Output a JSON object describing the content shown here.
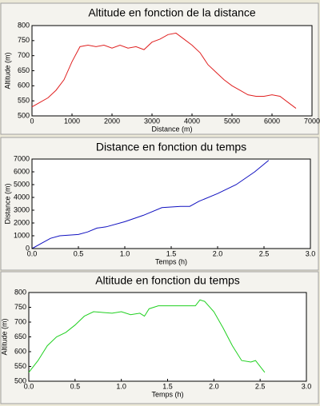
{
  "chart_data": [
    {
      "type": "line",
      "title": "Altitude en fonction de la distance",
      "x_label": "Distance (m)",
      "y_label": "Altitude (m)",
      "x": [
        0,
        200,
        400,
        600,
        800,
        1000,
        1200,
        1400,
        1600,
        1800,
        2000,
        2200,
        2400,
        2600,
        2800,
        3000,
        3200,
        3400,
        3600,
        3800,
        4000,
        4200,
        4400,
        4600,
        4800,
        5000,
        5200,
        5400,
        5600,
        5800,
        6000,
        6200,
        6400,
        6600
      ],
      "series": [
        {
          "color": "#e02020",
          "values": [
            530,
            545,
            560,
            585,
            620,
            680,
            730,
            735,
            730,
            735,
            725,
            735,
            725,
            730,
            720,
            745,
            755,
            770,
            775,
            755,
            735,
            710,
            670,
            645,
            620,
            600,
            585,
            570,
            565,
            565,
            570,
            565,
            545,
            525
          ]
        }
      ],
      "xlim": [
        0,
        7000
      ],
      "xticks": [
        0,
        1000,
        2000,
        3000,
        4000,
        5000,
        6000,
        7000
      ],
      "ylim": [
        500,
        800
      ],
      "yticks": [
        500,
        550,
        600,
        650,
        700,
        750,
        800
      ]
    },
    {
      "type": "line",
      "title": "Distance en fonction du temps",
      "x_label": "Temps (h)",
      "y_label": "Distance (m)",
      "x": [
        0,
        0.1,
        0.2,
        0.3,
        0.5,
        0.6,
        0.7,
        0.8,
        1.0,
        1.2,
        1.4,
        1.6,
        1.7,
        1.8,
        2.0,
        2.2,
        2.4,
        2.55
      ],
      "series": [
        {
          "color": "#1010c0",
          "values": [
            0,
            400,
            800,
            1000,
            1100,
            1300,
            1600,
            1700,
            2100,
            2600,
            3200,
            3300,
            3300,
            3700,
            4300,
            5000,
            6000,
            6900
          ]
        }
      ],
      "xlim": [
        0,
        3
      ],
      "xticks": [
        {
          "value": 0,
          "label": "0.0"
        },
        0.5,
        {
          "value": 1,
          "label": "1.0"
        },
        1.5,
        {
          "value": 2,
          "label": "2.0"
        },
        2.5,
        {
          "value": 3,
          "label": "3.0"
        }
      ],
      "ylim": [
        0,
        7000
      ],
      "yticks": [
        0,
        1000,
        2000,
        3000,
        4000,
        5000,
        6000,
        7000
      ]
    },
    {
      "type": "line",
      "title": "Altitude en fonction du temps",
      "x_label": "Temps (h)",
      "y_label": "Altitude (m)",
      "x": [
        0,
        0.1,
        0.2,
        0.3,
        0.4,
        0.5,
        0.6,
        0.7,
        0.9,
        1.0,
        1.1,
        1.2,
        1.25,
        1.3,
        1.4,
        1.6,
        1.8,
        1.85,
        1.9,
        2.0,
        2.1,
        2.2,
        2.3,
        2.4,
        2.45,
        2.55
      ],
      "series": [
        {
          "color": "#20d020",
          "values": [
            530,
            570,
            620,
            650,
            665,
            690,
            720,
            735,
            730,
            735,
            725,
            730,
            720,
            745,
            755,
            755,
            755,
            775,
            770,
            735,
            680,
            620,
            570,
            565,
            570,
            530
          ]
        }
      ],
      "xlim": [
        0,
        3
      ],
      "xticks": [
        {
          "value": 0,
          "label": "0.0"
        },
        0.5,
        {
          "value": 1,
          "label": "1.0"
        },
        1.5,
        {
          "value": 2,
          "label": "2.0"
        },
        2.5,
        {
          "value": 3,
          "label": "3.0"
        }
      ],
      "ylim": [
        500,
        800
      ],
      "yticks": [
        500,
        550,
        600,
        650,
        700,
        750,
        800
      ]
    }
  ]
}
